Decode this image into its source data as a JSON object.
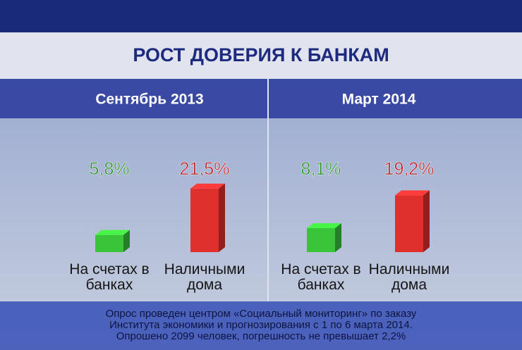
{
  "header": {
    "title": "РОСТ ДОВЕРИЯ К БАНКАМ"
  },
  "chart_data": [
    {
      "type": "bar",
      "title": "Сентябрь 2013",
      "categories": [
        "На счетах в банках",
        "Наличными дома"
      ],
      "values": [
        5.8,
        21.5
      ],
      "value_labels": [
        "5,8%",
        "21,5%"
      ],
      "colors": [
        "#39c43a",
        "#e0302e"
      ]
    },
    {
      "type": "bar",
      "title": "Март 2014",
      "categories": [
        "На счетах в банках",
        "Наличными дома"
      ],
      "values": [
        8.1,
        19.2
      ],
      "value_labels": [
        "8,1%",
        "19,2%"
      ],
      "colors": [
        "#39c43a",
        "#e0302e"
      ]
    }
  ],
  "footnote": [
    "Опрос проведен центром «Социальный мониторинг» по заказу",
    "Института экономики и прогнозирования с 1 по 6 марта 2014.",
    "Опрошено 2099 человек, погрешность не превышает 2,2%"
  ]
}
